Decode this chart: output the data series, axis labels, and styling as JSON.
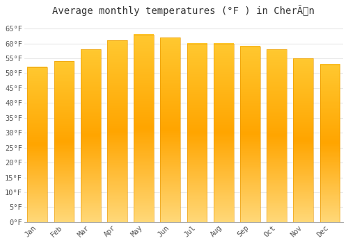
{
  "title": "Average monthly temperatures (°F ) in CherÃn",
  "months": [
    "Jan",
    "Feb",
    "Mar",
    "Apr",
    "May",
    "Jun",
    "Jul",
    "Aug",
    "Sep",
    "Oct",
    "Nov",
    "Dec"
  ],
  "values": [
    52.0,
    54.0,
    58.0,
    61.0,
    63.0,
    62.0,
    60.0,
    60.0,
    59.0,
    58.0,
    55.0,
    53.0
  ],
  "bar_color_top": "#FFC040",
  "bar_color_mid": "#F5A800",
  "bar_color_bot": "#FFD070",
  "background_color": "#ffffff",
  "grid_color": "#e8e8e8",
  "axis_background": "#f8f8f8",
  "ylim": [
    0,
    68
  ],
  "title_fontsize": 10,
  "tick_fontsize": 7.5,
  "font_family": "monospace"
}
